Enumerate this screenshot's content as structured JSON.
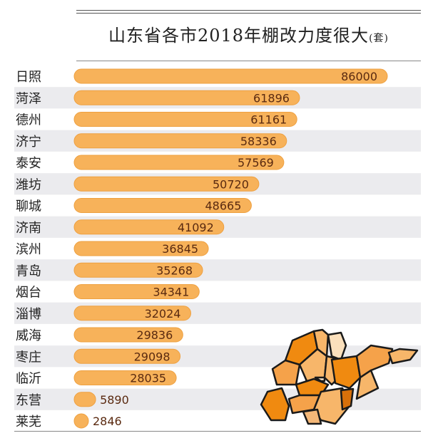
{
  "chart_data": {
    "type": "bar",
    "orientation": "horizontal",
    "title": "山东省各市2018年棚改力度很大",
    "unit": "(套)",
    "categories": [
      "日照",
      "菏泽",
      "德州",
      "济宁",
      "泰安",
      "潍坊",
      "聊城",
      "济南",
      "滨州",
      "青岛",
      "烟台",
      "淄博",
      "威海",
      "枣庄",
      "临沂",
      "东营",
      "莱芜"
    ],
    "values": [
      86000,
      61896,
      61161,
      58336,
      57569,
      50720,
      48665,
      41092,
      36845,
      35268,
      34341,
      32024,
      29836,
      29098,
      28035,
      5890,
      2846
    ],
    "xlim": [
      0,
      86000
    ],
    "grid": false,
    "bar_color": "#f7b25a",
    "label_color": "#5a2a10",
    "stripe_color": "#ebebee"
  }
}
